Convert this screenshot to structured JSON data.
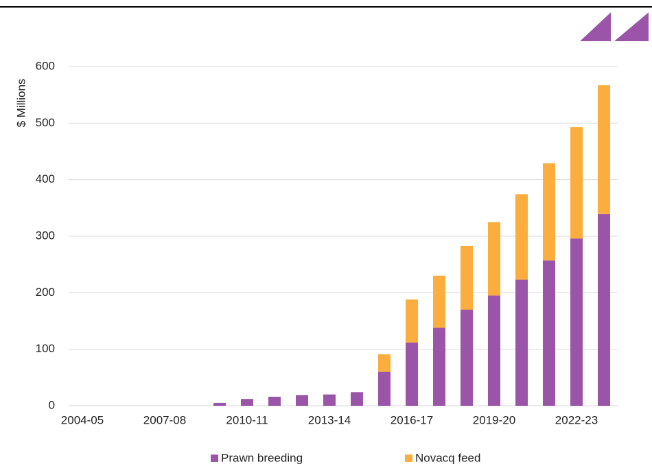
{
  "chart_data": {
    "type": "stacked_bar",
    "y_label": "$ Millions",
    "categories": [
      "2004-05",
      null,
      null,
      "2007-08",
      null,
      null,
      "2010-11",
      null,
      null,
      "2013-14",
      null,
      null,
      "2016-17",
      null,
      null,
      "2019-20",
      null,
      null,
      "2022-23",
      null
    ],
    "series": [
      {
        "name": "Prawn breeding",
        "color": "#9b55a8",
        "values": [
          0,
          0,
          0,
          0,
          0,
          5,
          12,
          16,
          19,
          20,
          24,
          60,
          112,
          138,
          170,
          195,
          223,
          257,
          296,
          339
        ]
      },
      {
        "name": "Novacq feed",
        "color": "#fbad3d",
        "values": [
          0,
          0,
          0,
          0,
          0,
          0,
          0,
          0,
          0,
          0,
          0,
          31,
          76,
          92,
          113,
          130,
          151,
          172,
          197,
          228
        ]
      }
    ],
    "ylim": [
      0,
      600
    ],
    "yticks": [
      0,
      100,
      200,
      300,
      400,
      500,
      600
    ],
    "grid": true,
    "legend": "bottom"
  }
}
